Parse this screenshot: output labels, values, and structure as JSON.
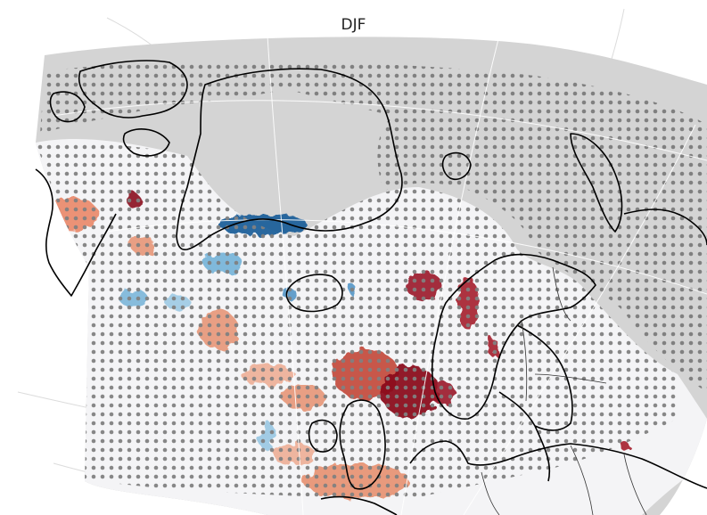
{
  "title": "DJF",
  "colors": {
    "domain_fill": "#d4d4d4",
    "sig_region_fill": "#f4f4f6",
    "stipple": "#808080",
    "coastline": "#000000",
    "warm_light": "#ef8a62",
    "warm_mid": "#d6604d",
    "warm_dark": "#8b0a1e",
    "cool_light": "#6baed6",
    "cool_dark": "#1f5f9a"
  },
  "layers": [
    "projected-domain",
    "anomaly-shading",
    "significance-stippling",
    "coastlines",
    "graticule"
  ]
}
